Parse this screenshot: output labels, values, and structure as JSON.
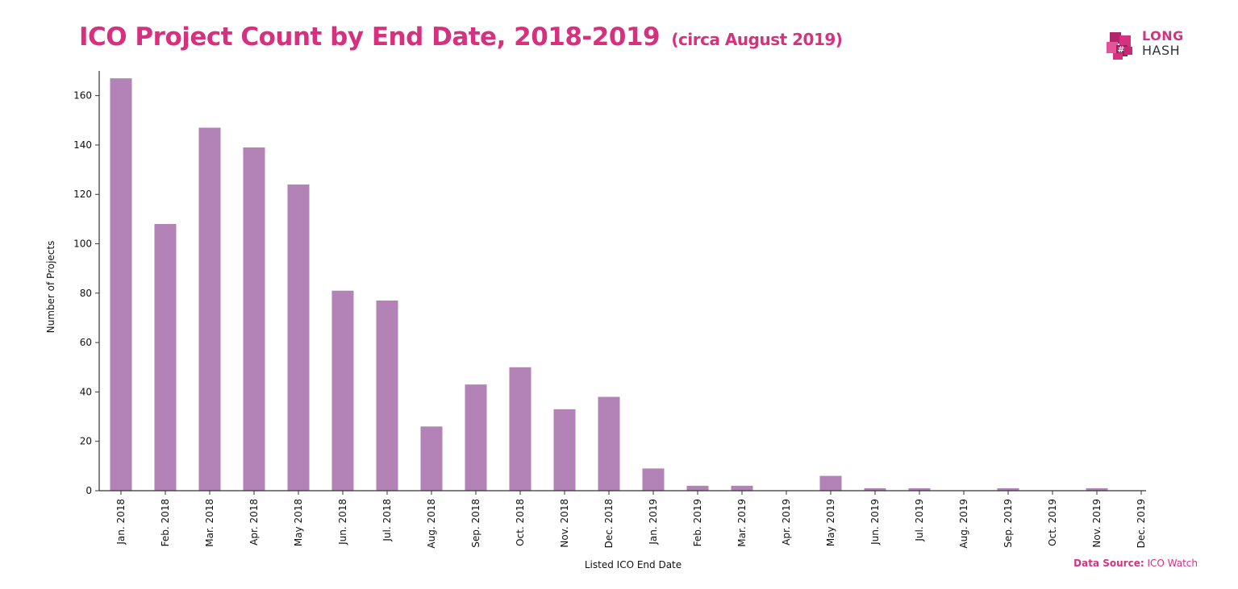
{
  "colors": {
    "accent": "#d6317f",
    "bar": "#b382b6",
    "axis": "#333333"
  },
  "header": {
    "title": "ICO Project Count by End Date, 2018-2019",
    "subtitle": "(circa August 2019)"
  },
  "logo": {
    "icon": "longhash-cube-icon",
    "line1": "LONG",
    "line2": "HASH"
  },
  "footer": {
    "source_label": "Data Source:",
    "source_value": "ICO Watch"
  },
  "chart_data": {
    "type": "bar",
    "title": "ICO Project Count by End Date, 2018-2019",
    "subtitle": "(circa August 2019)",
    "xlabel": "Listed ICO End Date",
    "ylabel": "Number of Projects",
    "ylim": [
      0,
      170
    ],
    "yticks": [
      0,
      20,
      40,
      60,
      80,
      100,
      120,
      140,
      160
    ],
    "grid": false,
    "categories": [
      "Jan. 2018",
      "Feb. 2018",
      "Mar. 2018",
      "Apr. 2018",
      "May 2018",
      "Jun. 2018",
      "Jul. 2018",
      "Aug. 2018",
      "Sep. 2018",
      "Oct. 2018",
      "Nov. 2018",
      "Dec. 2018",
      "Jan. 2019",
      "Feb. 2019",
      "Mar. 2019",
      "Apr. 2019",
      "May 2019",
      "Jun. 2019",
      "Jul. 2019",
      "Aug. 2019",
      "Sep. 2019",
      "Oct. 2019",
      "Nov. 2019",
      "Dec. 2019"
    ],
    "values": [
      167,
      108,
      147,
      139,
      124,
      81,
      77,
      26,
      43,
      50,
      33,
      38,
      9,
      2,
      2,
      0,
      6,
      1,
      1,
      0,
      1,
      0,
      1,
      0
    ]
  }
}
